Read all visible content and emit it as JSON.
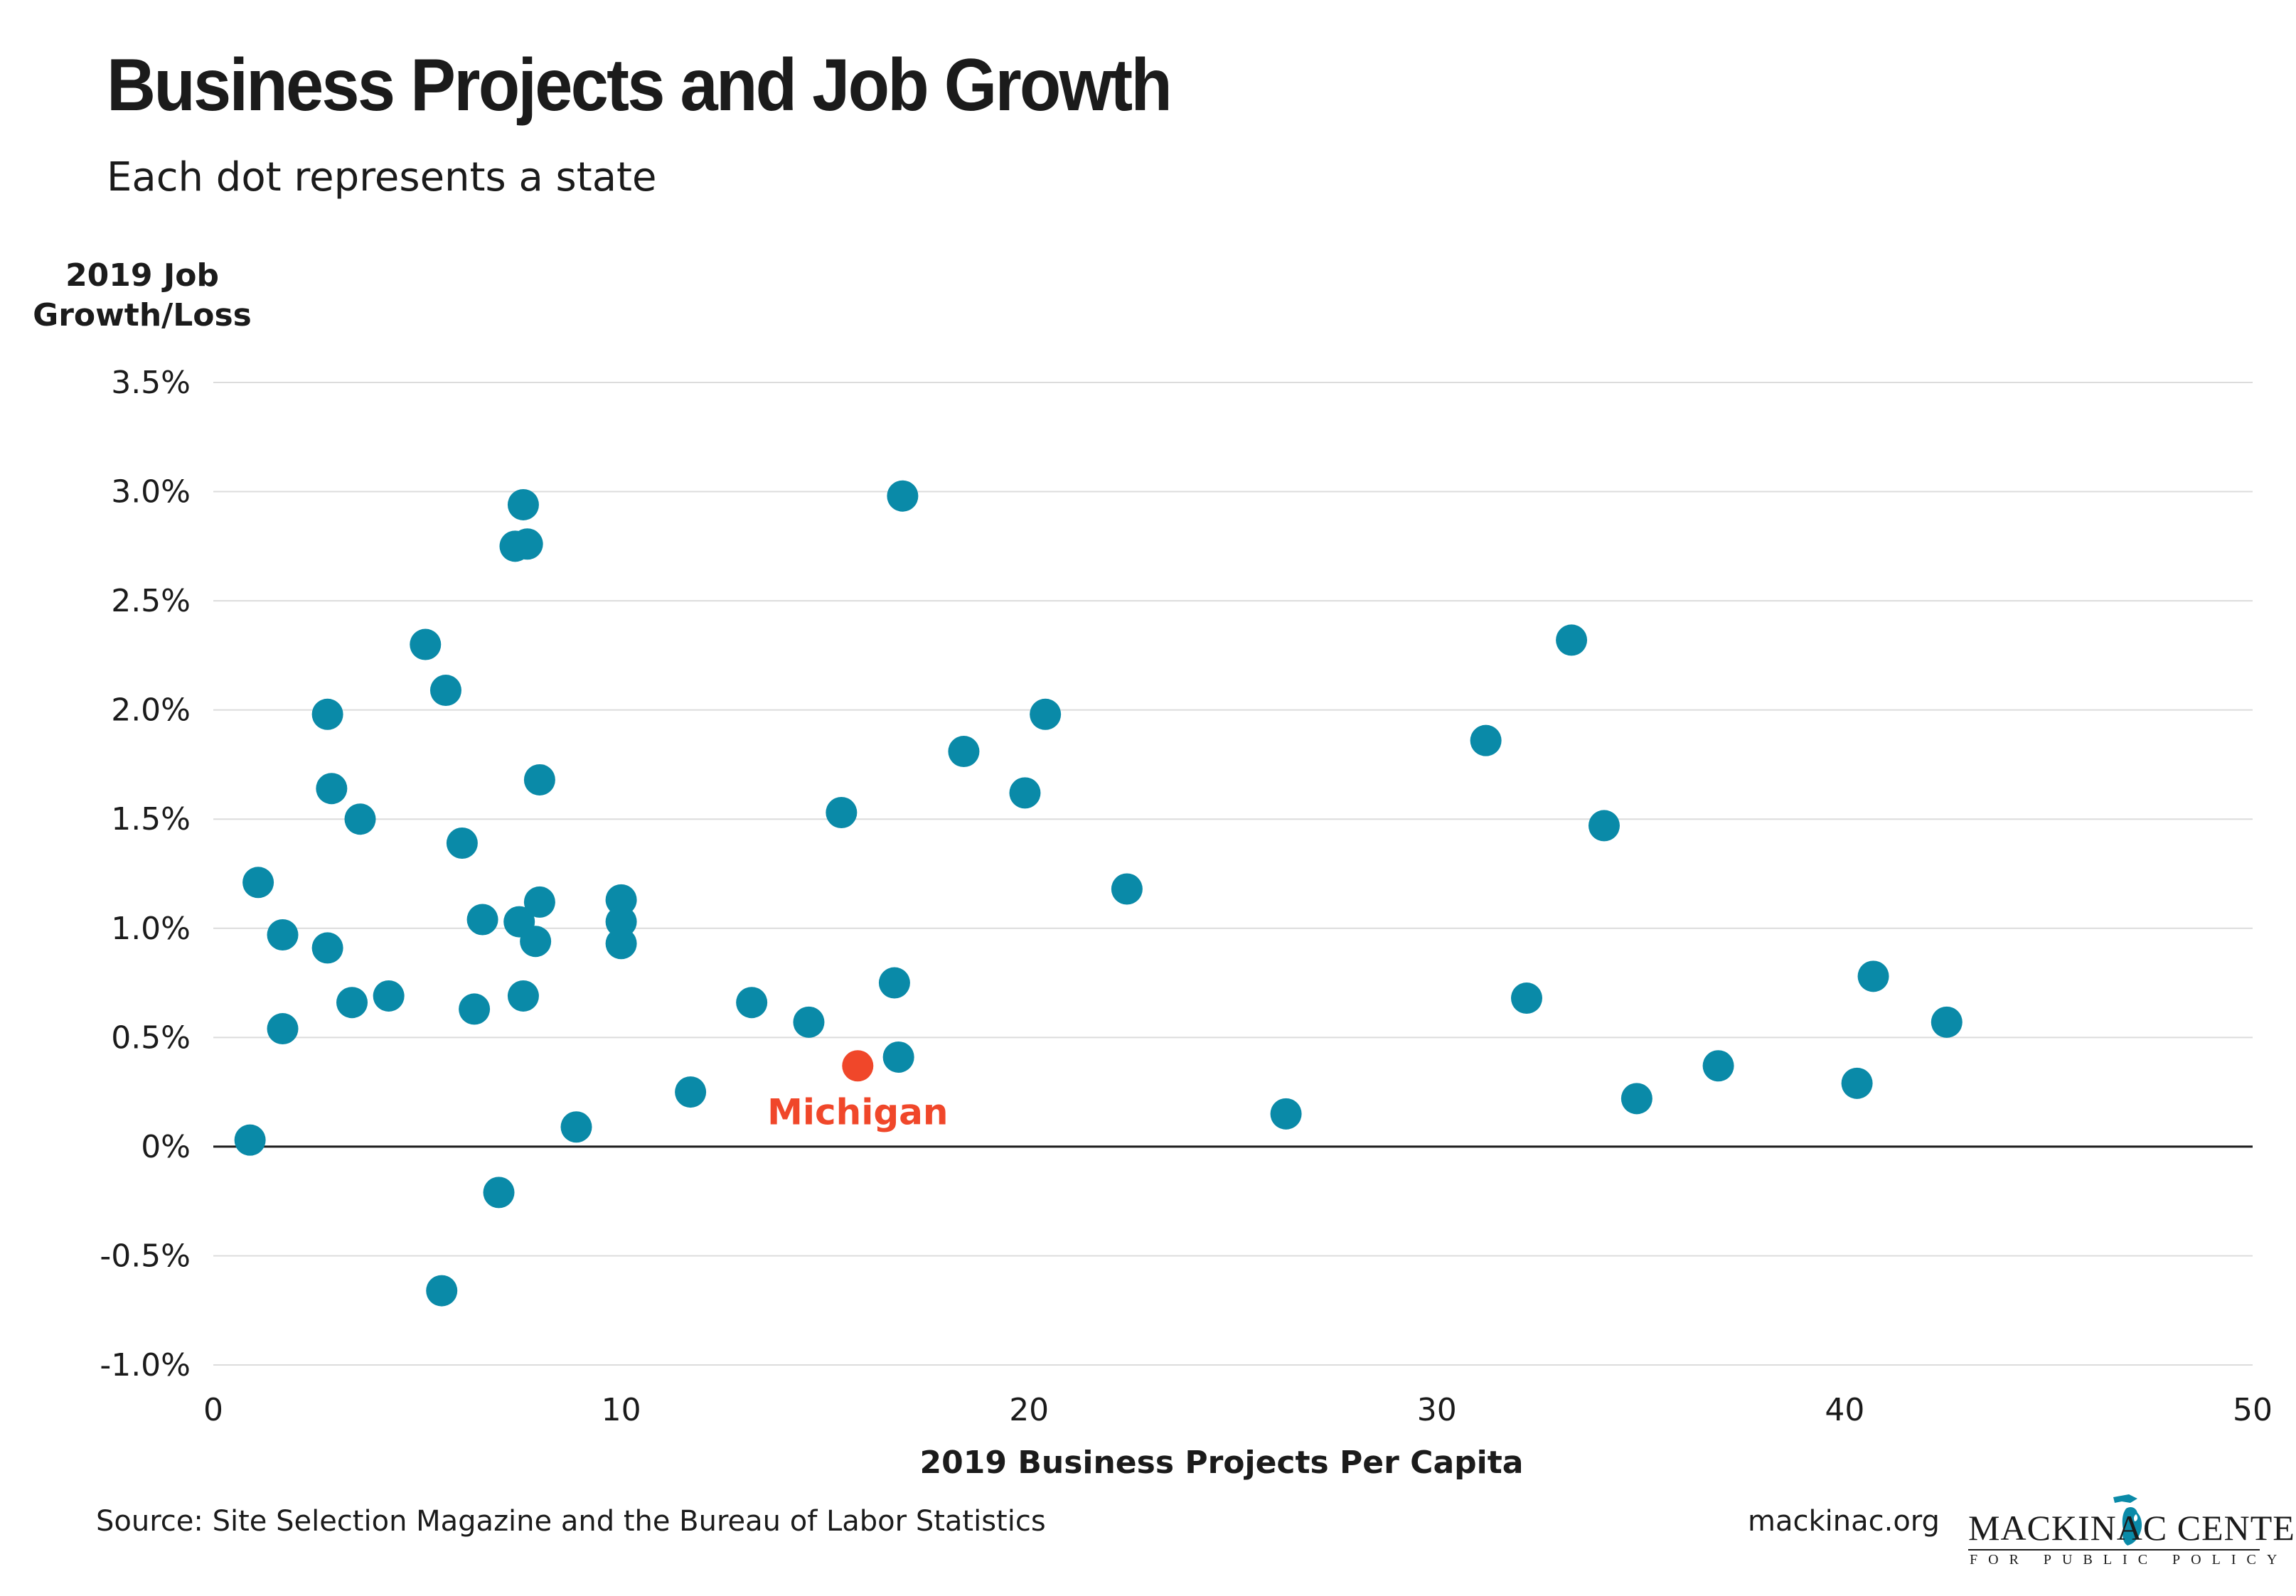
{
  "title": "Business Projects and Job Growth",
  "subtitle": "Each dot represents a state",
  "footer": {
    "source": "Source: Site Selection Magazine and the Bureau of Labor Statistics",
    "site": "mackinac.org",
    "logo_name": "MACKINAC CENTER",
    "logo_tagline": "FOR PUBLIC POLICY",
    "logo_icon": "michigan-map-icon"
  },
  "colors": {
    "dot": "#0a8aa8",
    "highlight": "#f0472a",
    "grid": "#dcdcdc",
    "zero_line": "#1b1b1b",
    "text": "#1b1b1b"
  },
  "chart_data": {
    "type": "scatter",
    "xlabel": "2019 Business Projects Per Capita",
    "ylabel": "2019 Job Growth/Loss",
    "xlim": [
      0,
      50
    ],
    "ylim": [
      -1.0,
      3.5
    ],
    "x_ticks": [
      {
        "value": 0,
        "label": "0"
      },
      {
        "value": 10,
        "label": "10"
      },
      {
        "value": 20,
        "label": "20"
      },
      {
        "value": 30,
        "label": "30"
      },
      {
        "value": 40,
        "label": "40"
      },
      {
        "value": 50,
        "label": "50"
      }
    ],
    "y_ticks": [
      {
        "value": 3.5,
        "label": "3.5%"
      },
      {
        "value": 3.0,
        "label": "3.0%"
      },
      {
        "value": 2.5,
        "label": "2.5%"
      },
      {
        "value": 2.0,
        "label": "2.0%"
      },
      {
        "value": 1.5,
        "label": "1.5%"
      },
      {
        "value": 1.0,
        "label": "1.0%"
      },
      {
        "value": 0.5,
        "label": "0.5%"
      },
      {
        "value": 0.0,
        "label": "0%"
      },
      {
        "value": -0.5,
        "label": "-0.5%"
      },
      {
        "value": -1.0,
        "label": "-1.0%"
      }
    ],
    "grid": true,
    "points": [
      {
        "x": 0.9,
        "y": 0.03
      },
      {
        "x": 1.1,
        "y": 1.21
      },
      {
        "x": 1.7,
        "y": 0.97
      },
      {
        "x": 1.7,
        "y": 0.54
      },
      {
        "x": 2.8,
        "y": 1.98
      },
      {
        "x": 2.9,
        "y": 1.64
      },
      {
        "x": 2.8,
        "y": 0.91
      },
      {
        "x": 3.4,
        "y": 0.66
      },
      {
        "x": 3.6,
        "y": 1.5
      },
      {
        "x": 4.3,
        "y": 0.69
      },
      {
        "x": 5.2,
        "y": 2.3
      },
      {
        "x": 5.7,
        "y": 2.09
      },
      {
        "x": 5.6,
        "y": -0.66
      },
      {
        "x": 6.1,
        "y": 1.39
      },
      {
        "x": 6.6,
        "y": 1.04
      },
      {
        "x": 6.4,
        "y": 0.63
      },
      {
        "x": 7.0,
        "y": -0.21
      },
      {
        "x": 7.4,
        "y": 2.75
      },
      {
        "x": 7.6,
        "y": 2.94
      },
      {
        "x": 7.7,
        "y": 2.76
      },
      {
        "x": 7.5,
        "y": 1.03
      },
      {
        "x": 7.6,
        "y": 0.69
      },
      {
        "x": 8.0,
        "y": 1.12
      },
      {
        "x": 8.0,
        "y": 1.68
      },
      {
        "x": 7.9,
        "y": 0.94
      },
      {
        "x": 8.9,
        "y": 0.09
      },
      {
        "x": 10.0,
        "y": 1.13
      },
      {
        "x": 10.0,
        "y": 1.03
      },
      {
        "x": 10.0,
        "y": 0.93
      },
      {
        "x": 11.7,
        "y": 0.25
      },
      {
        "x": 13.2,
        "y": 0.66
      },
      {
        "x": 14.6,
        "y": 0.57
      },
      {
        "x": 15.4,
        "y": 1.53
      },
      {
        "x": 16.7,
        "y": 0.75
      },
      {
        "x": 16.8,
        "y": 0.41
      },
      {
        "x": 16.9,
        "y": 2.98
      },
      {
        "x": 18.4,
        "y": 1.81
      },
      {
        "x": 19.9,
        "y": 1.62
      },
      {
        "x": 20.4,
        "y": 1.98
      },
      {
        "x": 22.4,
        "y": 1.18
      },
      {
        "x": 26.3,
        "y": 0.15
      },
      {
        "x": 31.2,
        "y": 1.86
      },
      {
        "x": 32.2,
        "y": 0.68
      },
      {
        "x": 33.3,
        "y": 2.32
      },
      {
        "x": 34.1,
        "y": 1.47
      },
      {
        "x": 34.9,
        "y": 0.22
      },
      {
        "x": 36.9,
        "y": 0.37
      },
      {
        "x": 40.3,
        "y": 0.29
      },
      {
        "x": 40.7,
        "y": 0.78
      },
      {
        "x": 42.5,
        "y": 0.57
      }
    ],
    "highlight": {
      "x": 15.8,
      "y": 0.37,
      "label": "Michigan"
    }
  }
}
